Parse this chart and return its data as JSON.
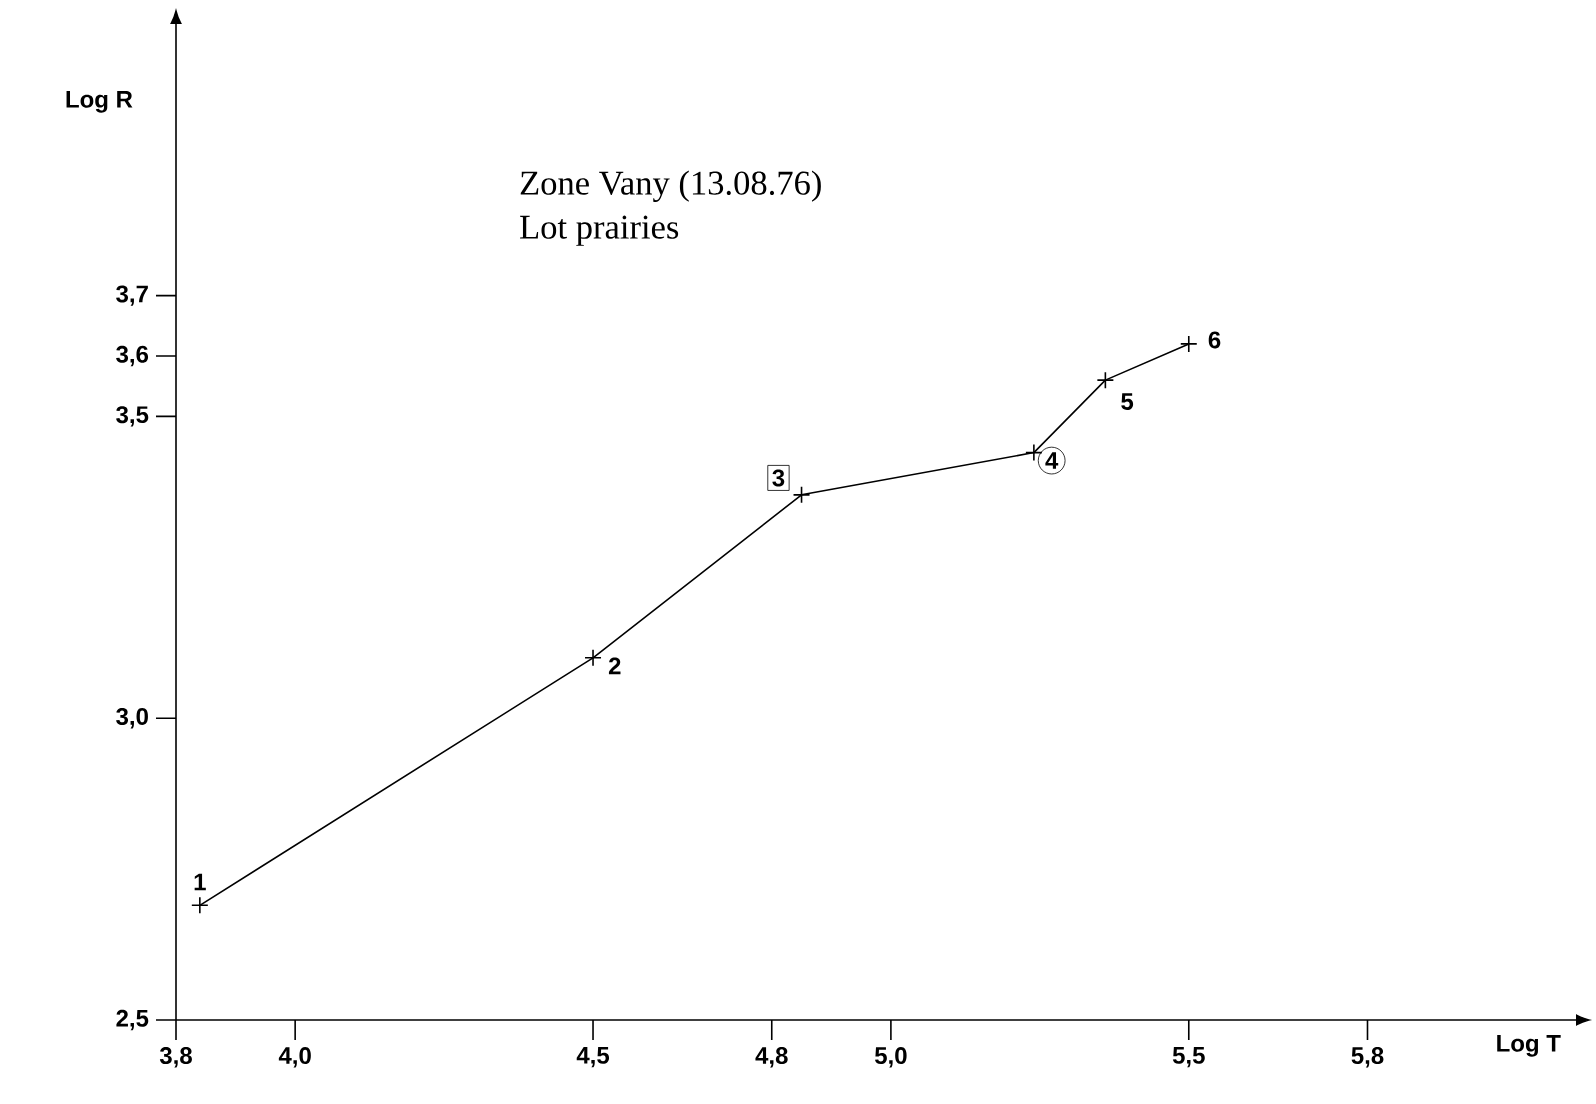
{
  "chart_data": {
    "type": "line",
    "title": "Zone Vany (13.08.76)",
    "subtitle": "Lot prairies",
    "xlabel": "Log T",
    "ylabel": "Log R",
    "x": [
      3.84,
      4.5,
      4.85,
      5.24,
      5.36,
      5.5
    ],
    "values": [
      2.69,
      3.1,
      3.37,
      3.44,
      3.56,
      3.62
    ],
    "color": "#000000",
    "marker": "cross",
    "line_style": "solid",
    "grid": false,
    "legend": false,
    "xlim": [
      3.8,
      6.15
    ],
    "ylim": [
      2.5,
      4.15
    ],
    "xticks": [
      {
        "value": 3.8,
        "label": "3,8"
      },
      {
        "value": 4.0,
        "label": "4,0"
      },
      {
        "value": 4.5,
        "label": "4,5"
      },
      {
        "value": 4.8,
        "label": "4,8"
      },
      {
        "value": 5.0,
        "label": "5,0"
      },
      {
        "value": 5.5,
        "label": "5,5"
      },
      {
        "value": 5.8,
        "label": "5,8"
      }
    ],
    "yticks": [
      {
        "value": 2.5,
        "label": "2,5"
      },
      {
        "value": 3.0,
        "label": "3,0"
      },
      {
        "value": 3.5,
        "label": "3,5"
      },
      {
        "value": 3.6,
        "label": "3,6"
      },
      {
        "value": 3.7,
        "label": "3,7"
      }
    ],
    "annotations": [
      {
        "text": "1",
        "x": 3.84,
        "y": 2.69
      },
      {
        "text": "2",
        "x": 4.5,
        "y": 3.1
      },
      {
        "text": "3",
        "x": 4.85,
        "y": 3.37
      },
      {
        "text": "4",
        "x": 5.24,
        "y": 3.44
      },
      {
        "text": "5",
        "x": 5.36,
        "y": 3.56
      },
      {
        "text": "6",
        "x": 5.5,
        "y": 3.62
      }
    ]
  }
}
